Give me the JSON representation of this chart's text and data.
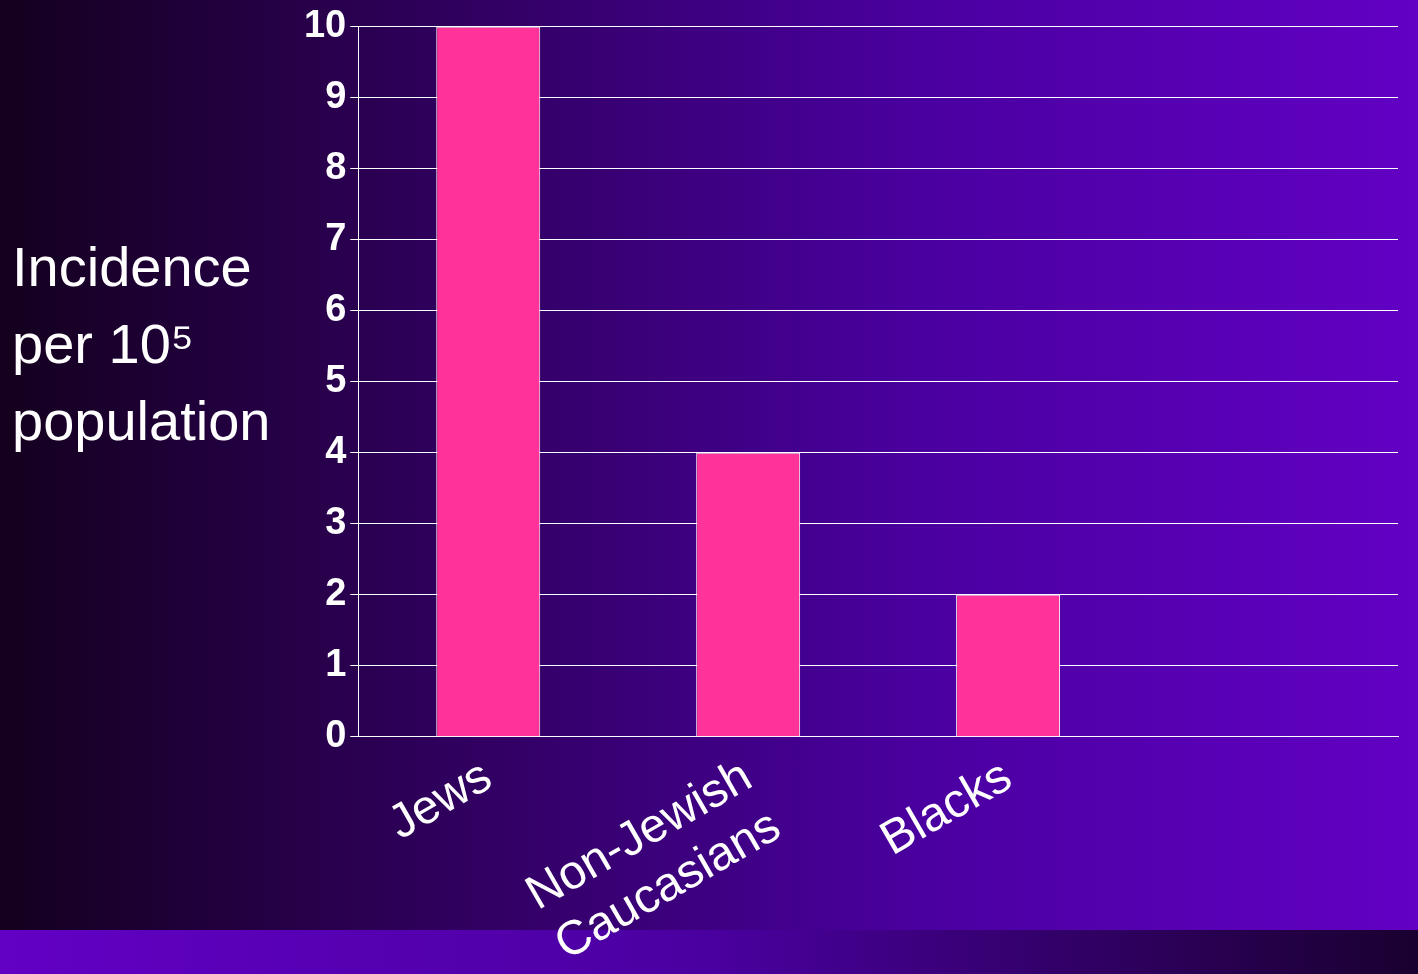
{
  "chart_data": {
    "type": "bar",
    "ylabel": "Incidence per 10⁵ population",
    "categories": [
      "Jews",
      "Non-Jewish\nCaucasians",
      "Blacks",
      null
    ],
    "values": [
      10,
      4,
      2,
      null
    ],
    "color": "#ff3399",
    "ylim": [
      0,
      10
    ],
    "yticks": [
      0,
      1,
      2,
      3,
      4,
      5,
      6,
      7,
      8,
      9,
      10
    ],
    "grid": "y"
  }
}
